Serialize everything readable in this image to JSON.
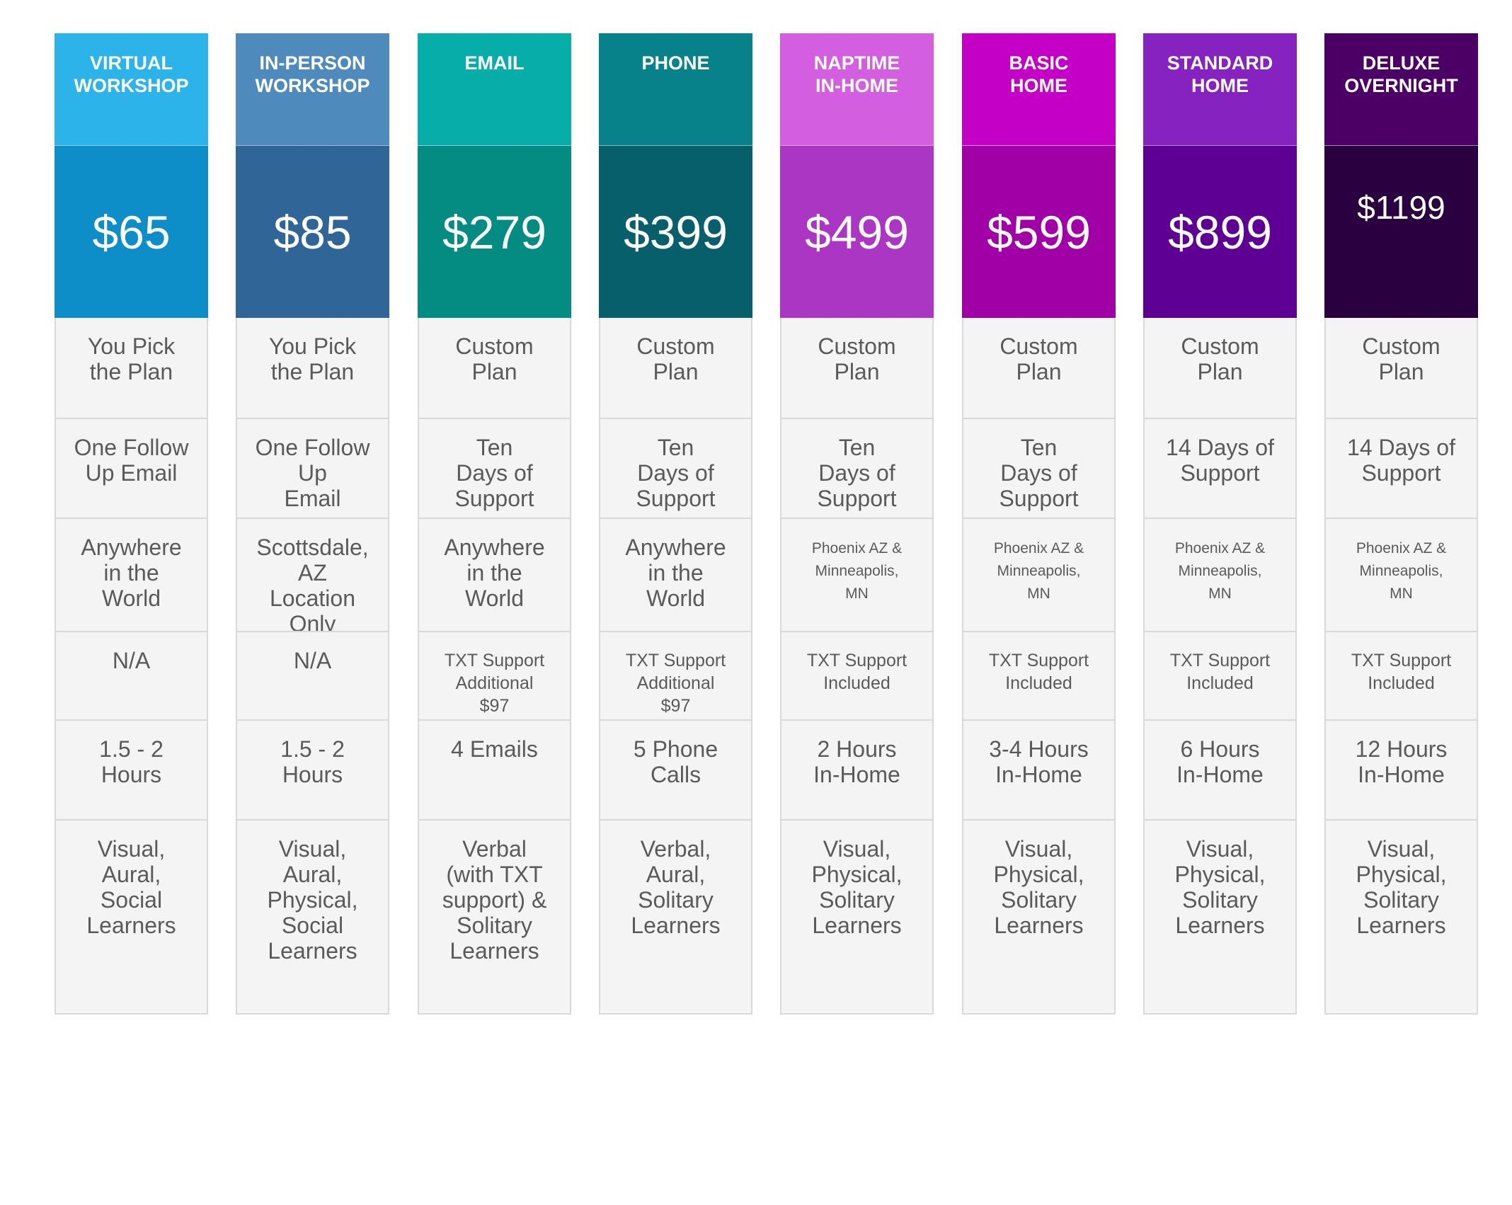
{
  "plans": [
    {
      "name": "VIRTUAL\nWORKSHOP",
      "price": "$65",
      "plan": "You Pick\nthe Plan",
      "support": "One Follow\nUp Email",
      "location": "Anywhere\nin the\nWorld",
      "txt": "N/A",
      "time": "1.5 - 2\nHours",
      "learners": "Visual,\nAural,\nSocial\nLearners",
      "hdr_color": "#2bb3ea",
      "price_color": "#0d8ec9"
    },
    {
      "name": "IN-PERSON\nWORKSHOP",
      "price": "$85",
      "plan": "You Pick\nthe Plan",
      "support": "One Follow\nUp\nEmail",
      "location": "Scottsdale,\nAZ\nLocation\nOnly",
      "txt": "N/A",
      "time": "1.5 - 2\nHours",
      "learners": "Visual,\nAural,\nPhysical,\nSocial\nLearners",
      "hdr_color": "#4e8bbc",
      "price_color": "#2f6597"
    },
    {
      "name": "EMAIL",
      "price": "$279",
      "plan": "Custom\nPlan",
      "support": "Ten\nDays of\nSupport",
      "location": "Anywhere\nin the\nWorld",
      "txt": "TXT Support\nAdditional\n$97",
      "time": "4 Emails",
      "learners": "Verbal\n(with  TXT\nsupport) &\nSolitary\nLearners",
      "hdr_color": "#07ada8",
      "price_color": "#048c82"
    },
    {
      "name": "PHONE",
      "price": "$399",
      "plan": "Custom\nPlan",
      "support": "Ten\nDays of\nSupport",
      "location": "Anywhere\nin the\nWorld",
      "txt": "TXT Support\nAdditional\n$97",
      "time": "5 Phone\nCalls",
      "learners": "Verbal,\nAural,\nSolitary\nLearners",
      "hdr_color": "#07818a",
      "price_color": "#075f6b"
    },
    {
      "name": "NAPTIME\nIN-HOME",
      "price": "$499",
      "plan": "Custom\nPlan",
      "support": "Ten\nDays of\nSupport",
      "location": "Phoenix AZ &\nMinneapolis,\nMN",
      "txt": "TXT Support\nIncluded",
      "time": "2 Hours\nIn-Home",
      "learners": "Visual,\nPhysical,\nSolitary\nLearners",
      "hdr_color": "#d35ee0",
      "price_color": "#ab36c3"
    },
    {
      "name": "BASIC\nHOME",
      "price": "$599",
      "plan": "Custom\nPlan",
      "support": "Ten\nDays of\nSupport",
      "location": "Phoenix AZ &\nMinneapolis,\nMN",
      "txt": "TXT Support\nIncluded",
      "time": "3-4 Hours\nIn-Home",
      "learners": "Visual,\nPhysical,\nSolitary\nLearners",
      "hdr_color": "#c400c7",
      "price_color": "#a000a6"
    },
    {
      "name": "STANDARD\nHOME",
      "price": "$899",
      "plan": "Custom\nPlan",
      "support": "14 Days of\nSupport",
      "location": "Phoenix AZ &\nMinneapolis,\nMN",
      "txt": "TXT Support\nIncluded",
      "time": "6 Hours\nIn-Home",
      "learners": "Visual,\nPhysical,\nSolitary\nLearners",
      "hdr_color": "#8522c0",
      "price_color": "#5f0095"
    },
    {
      "name": "DELUXE\nOVERNIGHT",
      "price": "$1199",
      "plan": "Custom\nPlan",
      "support": "14 Days of\nSupport",
      "location": "Phoenix AZ &\nMinneapolis,\nMN",
      "txt": "TXT Support\nIncluded",
      "time": "12 Hours\nIn-Home",
      "learners": "Visual,\nPhysical,\nSolitary\nLearners",
      "hdr_color": "#4c0066",
      "price_color": "#2a0040"
    }
  ]
}
